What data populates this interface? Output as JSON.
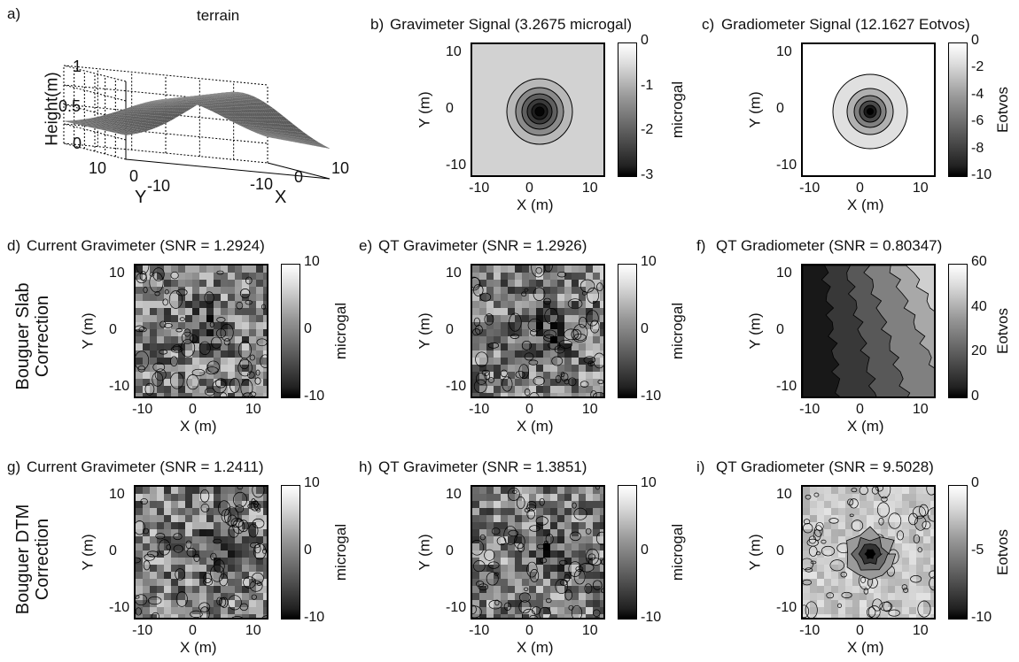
{
  "panels": {
    "a": {
      "label": "a)",
      "title": "terrain",
      "zlabel": "Height(m)",
      "xlabel": "X",
      "ylabel": "Y",
      "zticks": [
        "1",
        "0.5",
        "0"
      ],
      "xticks": [
        "-10",
        "0",
        "10"
      ],
      "yticks": [
        "10",
        "0",
        "-10"
      ]
    },
    "b": {
      "label": "b)",
      "title": "Gravimeter Signal (3.2675 microgal)",
      "cbar_label": "microgal",
      "cbar_ticks": [
        "0",
        "-1",
        "-2",
        "-3"
      ]
    },
    "c": {
      "label": "c)",
      "title": "Gradiometer Signal (12.1627 Eotvos)",
      "cbar_label": "Eotvos",
      "cbar_ticks": [
        "0",
        "-2",
        "-4",
        "-6",
        "-8",
        "-10"
      ]
    },
    "d": {
      "label": "d)",
      "title": "Current Gravimeter (SNR = 1.2924)",
      "cbar_label": "microgal",
      "cbar_ticks": [
        "10",
        "0",
        "-10"
      ]
    },
    "e": {
      "label": "e)",
      "title": "QT Gravimeter (SNR = 1.2926)",
      "cbar_label": "microgal",
      "cbar_ticks": [
        "10",
        "0",
        "-10"
      ]
    },
    "f": {
      "label": "f)",
      "title": "QT Gradiometer (SNR = 0.80347)",
      "cbar_label": "Eotvos",
      "cbar_ticks": [
        "60",
        "40",
        "20",
        "0"
      ]
    },
    "g": {
      "label": "g)",
      "title": "Current Gravimeter (SNR = 1.2411)",
      "cbar_label": "microgal",
      "cbar_ticks": [
        "10",
        "0",
        "-10"
      ]
    },
    "h": {
      "label": "h)",
      "title": "QT Gravimeter (SNR = 1.3851)",
      "cbar_label": "microgal",
      "cbar_ticks": [
        "10",
        "0",
        "-10"
      ]
    },
    "i": {
      "label": "i)",
      "title": "QT Gradiometer (SNR = 9.5028)",
      "cbar_label": "Eotvos",
      "cbar_ticks": [
        "0",
        "-5",
        "-10"
      ]
    }
  },
  "axes": {
    "xlabel": "X (m)",
    "ylabel": "Y (m)",
    "xticks": [
      "-10",
      "0",
      "10"
    ],
    "yticks": [
      "10",
      "0",
      "-10"
    ]
  },
  "row_labels": {
    "row2_line1": "Bouguer Slab",
    "row2_line2": "Correction",
    "row3_line1": "Bouguer DTM",
    "row3_line2": "Correction"
  },
  "chart_data": [
    {
      "type": "surface",
      "panel": "a",
      "title": "terrain",
      "zlabel": "Height(m)",
      "xlabel": "X",
      "ylabel": "Y",
      "zlim": [
        0,
        1
      ],
      "xlim": [
        -12,
        12
      ],
      "ylim": [
        -12,
        12
      ]
    },
    {
      "type": "heatmap",
      "panel": "b",
      "title": "Gravimeter Signal (3.2675 microgal)",
      "xlabel": "X (m)",
      "ylabel": "Y (m)",
      "xlim": [
        -12,
        12
      ],
      "ylim": [
        -12,
        12
      ],
      "colorbar_label": "microgal",
      "clim": [
        -3,
        0
      ],
      "center": [
        0,
        0
      ]
    },
    {
      "type": "heatmap",
      "panel": "c",
      "title": "Gradiometer Signal (12.1627 Eotvos)",
      "xlabel": "X (m)",
      "ylabel": "Y (m)",
      "xlim": [
        -12,
        12
      ],
      "ylim": [
        -12,
        12
      ],
      "colorbar_label": "Eotvos",
      "clim": [
        -12,
        0
      ],
      "center": [
        0,
        0
      ]
    },
    {
      "type": "heatmap",
      "panel": "d",
      "title": "Current Gravimeter (SNR = 1.2924)",
      "xlabel": "X (m)",
      "ylabel": "Y (m)",
      "xlim": [
        -12,
        12
      ],
      "ylim": [
        -12,
        12
      ],
      "colorbar_label": "microgal",
      "clim": [
        -10,
        10
      ]
    },
    {
      "type": "heatmap",
      "panel": "e",
      "title": "QT Gravimeter (SNR = 1.2926)",
      "xlabel": "X (m)",
      "ylabel": "Y (m)",
      "xlim": [
        -12,
        12
      ],
      "ylim": [
        -12,
        12
      ],
      "colorbar_label": "microgal",
      "clim": [
        -10,
        10
      ]
    },
    {
      "type": "heatmap",
      "panel": "f",
      "title": "QT Gradiometer (SNR = 0.80347)",
      "xlabel": "X (m)",
      "ylabel": "Y (m)",
      "xlim": [
        -12,
        12
      ],
      "ylim": [
        -12,
        12
      ],
      "colorbar_label": "Eotvos",
      "clim": [
        0,
        60
      ]
    },
    {
      "type": "heatmap",
      "panel": "g",
      "title": "Current Gravimeter (SNR = 1.2411)",
      "xlabel": "X (m)",
      "ylabel": "Y (m)",
      "xlim": [
        -12,
        12
      ],
      "ylim": [
        -12,
        12
      ],
      "colorbar_label": "microgal",
      "clim": [
        -10,
        10
      ]
    },
    {
      "type": "heatmap",
      "panel": "h",
      "title": "QT Gravimeter (SNR = 1.3851)",
      "xlabel": "X (m)",
      "ylabel": "Y (m)",
      "xlim": [
        -12,
        12
      ],
      "ylim": [
        -12,
        12
      ],
      "colorbar_label": "microgal",
      "clim": [
        -10,
        10
      ]
    },
    {
      "type": "heatmap",
      "panel": "i",
      "title": "QT Gradiometer (SNR = 9.5028)",
      "xlabel": "X (m)",
      "ylabel": "Y (m)",
      "xlim": [
        -12,
        12
      ],
      "ylim": [
        -12,
        12
      ],
      "colorbar_label": "Eotvos",
      "clim": [
        -13,
        2
      ],
      "center": [
        0,
        0
      ]
    }
  ]
}
